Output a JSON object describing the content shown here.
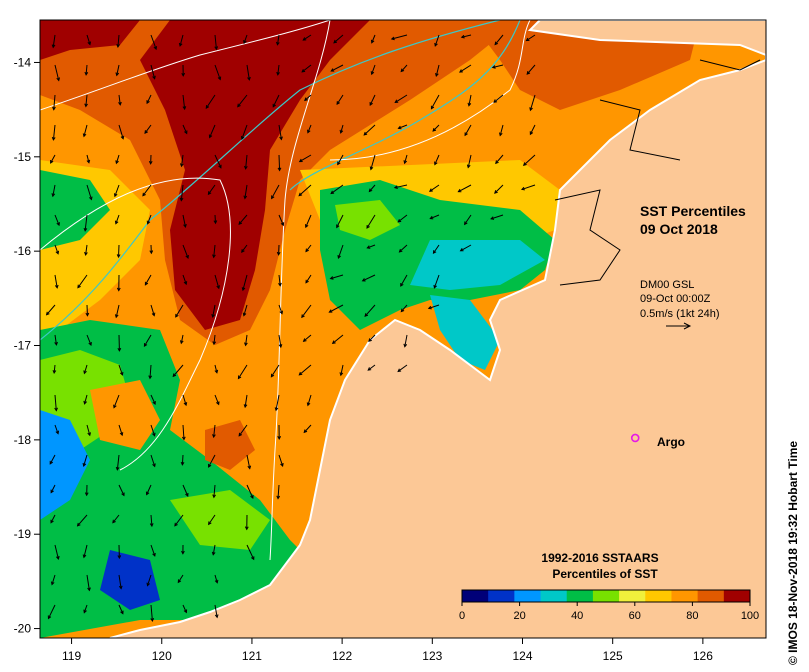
{
  "map": {
    "x_ticks": [
      "119",
      "120",
      "121",
      "122",
      "123",
      "124",
      "125",
      "126"
    ],
    "y_ticks": [
      "-14",
      "-15",
      "-16",
      "-17",
      "-18",
      "-19",
      "-20"
    ],
    "x_range": [
      118.65,
      126.7
    ],
    "y_range": [
      -20.1,
      -13.55
    ],
    "land_color": "#fcc896",
    "ocean_palette": [
      "#000078",
      "#0032c8",
      "#0096ff",
      "#00c8c8",
      "#00be46",
      "#78e100",
      "#f0f03c",
      "#ffc800",
      "#ff9600",
      "#e15a00",
      "#a00000"
    ]
  },
  "labels": {
    "title_line1": "SST Percentiles",
    "title_line2": "09 Oct 2018",
    "current_line1": "DM00 GSL",
    "current_line2": "09-Oct 00:00Z",
    "current_line3": "0.5m/s (1kt 24h)",
    "argo_label": "Argo",
    "credit": "© IMOS 18-Nov-2018 19:32 Hobart Time"
  },
  "legend": {
    "title_line1": "1992-2016 SSTAARS",
    "title_line2": "Percentiles of SST",
    "tick_labels": [
      "0",
      "20",
      "40",
      "60",
      "80",
      "100"
    ],
    "colors": [
      "#000078",
      "#0032c8",
      "#0096ff",
      "#00c8c8",
      "#00be46",
      "#78e100",
      "#f0f03c",
      "#ffc800",
      "#ff9600",
      "#e15a00",
      "#a00000"
    ]
  },
  "argo": {
    "lon": 125.25,
    "lat": -17.98,
    "color": "#e619e6"
  }
}
